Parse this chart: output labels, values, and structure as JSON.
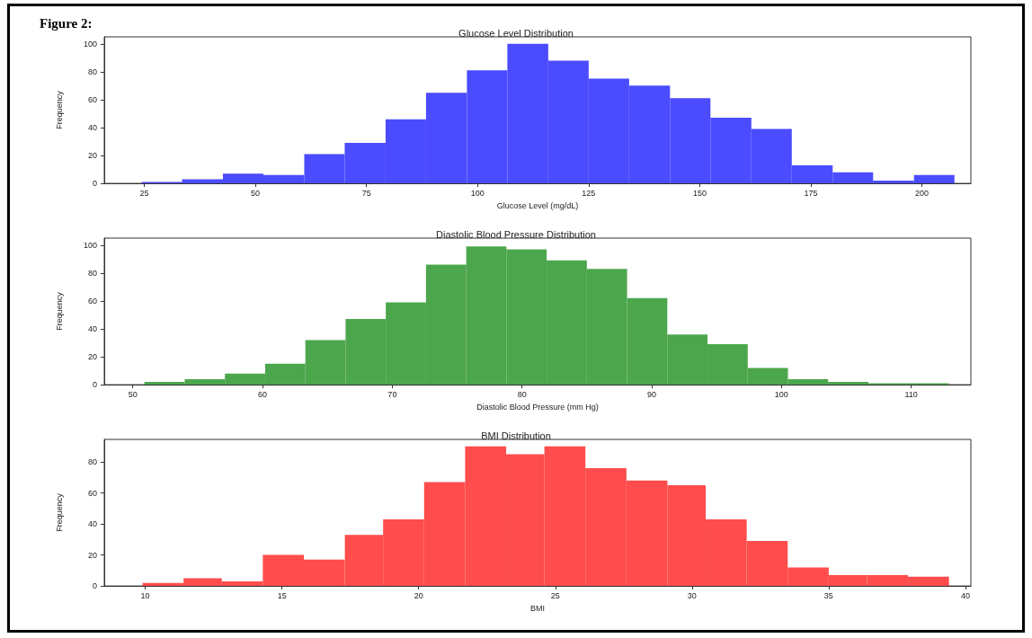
{
  "chart_data": [
    {
      "type": "histogram",
      "title": "Glucose Level Distribution",
      "xlabel": "Glucose Level (mg/dL)",
      "ylabel": "Frequency",
      "annotations": [
        "Figure 2:"
      ],
      "color": "#4b4bff",
      "bins": [
        24.4,
        33.5,
        42.7,
        51.8,
        61.0,
        70.1,
        79.3,
        88.4,
        97.6,
        106.7,
        115.9,
        125.0,
        134.1,
        143.3,
        152.4,
        161.6,
        170.7,
        179.9,
        189.0,
        198.2,
        207.3
      ],
      "values": [
        1,
        3,
        7,
        6,
        21,
        29,
        46,
        65,
        81,
        100,
        88,
        75,
        70,
        61,
        47,
        39,
        13,
        8,
        2,
        6
      ],
      "xlim": [
        16,
        211
      ],
      "xticks": [
        25,
        50,
        75,
        100,
        125,
        150,
        175,
        200
      ],
      "ylim": [
        0,
        105
      ],
      "yticks": [
        0,
        20,
        40,
        60,
        80,
        100
      ],
      "grid": false
    },
    {
      "type": "histogram",
      "title": "Diastolic Blood Pressure Distribution",
      "xlabel": "Diastolic Blood Pressure (mm Hg)",
      "ylabel": "Frequency",
      "color": "#4ca64c",
      "bins": [
        50.9,
        54.0,
        57.1,
        60.2,
        63.3,
        66.4,
        69.5,
        72.6,
        75.7,
        78.8,
        81.9,
        85.0,
        88.1,
        91.2,
        94.3,
        97.4,
        100.5,
        103.6,
        106.7,
        109.8,
        112.9
      ],
      "values": [
        2,
        4,
        8,
        15,
        32,
        47,
        59,
        86,
        99,
        97,
        89,
        83,
        62,
        36,
        29,
        12,
        4,
        2,
        1,
        1
      ],
      "xlim": [
        47.8,
        114.6
      ],
      "xticks": [
        50,
        60,
        70,
        80,
        90,
        100,
        110
      ],
      "ylim": [
        0,
        105
      ],
      "yticks": [
        0,
        20,
        40,
        60,
        80,
        100
      ],
      "grid": false
    },
    {
      "type": "histogram",
      "title": "BMI Distribution",
      "xlabel": "BMI",
      "ylabel": "Frequency",
      "color": "#ff4c4c",
      "bins": [
        9.9,
        11.4,
        12.8,
        14.3,
        15.8,
        17.3,
        18.7,
        20.2,
        21.7,
        23.2,
        24.6,
        26.1,
        27.6,
        29.1,
        30.5,
        32.0,
        33.5,
        35.0,
        36.4,
        37.9,
        39.4
      ],
      "values": [
        2,
        5,
        3,
        20,
        17,
        33,
        43,
        67,
        90,
        85,
        90,
        76,
        68,
        65,
        43,
        29,
        12,
        7,
        7,
        6
      ],
      "xlim": [
        8.5,
        40.2
      ],
      "xticks": [
        10,
        15,
        20,
        25,
        30,
        35,
        40
      ],
      "ylim": [
        0,
        94.5
      ],
      "yticks": [
        0,
        20,
        40,
        60,
        80
      ],
      "grid": false
    }
  ]
}
